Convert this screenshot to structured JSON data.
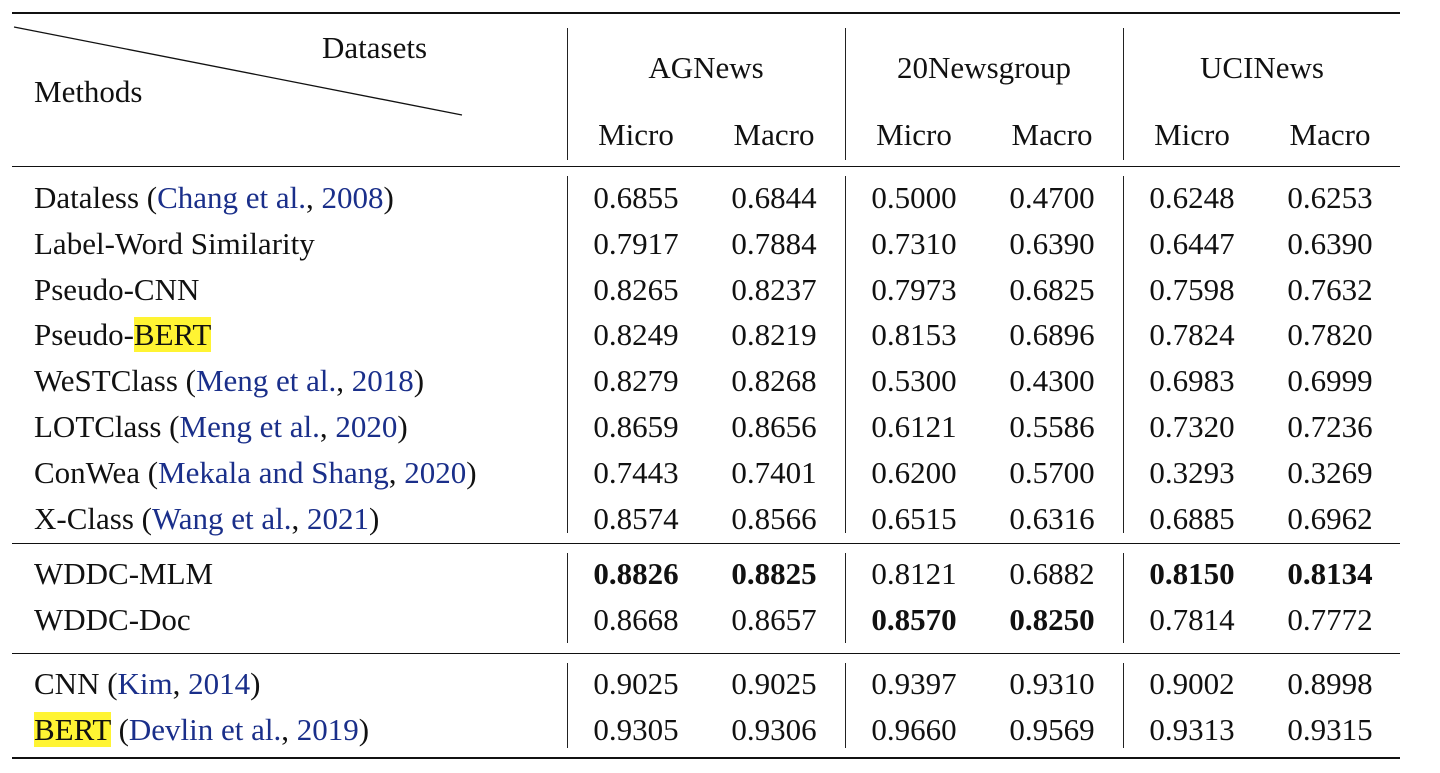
{
  "header": {
    "corner_top": "Datasets",
    "corner_bottom": "Methods",
    "datasets": [
      "AGNews",
      "20Newsgroup",
      "UCINews"
    ],
    "metrics": [
      "Micro",
      "Macro",
      "Micro",
      "Macro",
      "Micro",
      "Macro"
    ]
  },
  "groups": [
    {
      "rows": [
        {
          "parts": [
            {
              "t": "Dataless ("
            },
            {
              "t": "Chang et al.",
              "c": 1
            },
            {
              "t": ", "
            },
            {
              "t": "2008",
              "c": 1
            },
            {
              "t": ")"
            }
          ],
          "values": [
            "0.6855",
            "0.6844",
            "0.5000",
            "0.4700",
            "0.6248",
            "0.6253"
          ],
          "bold": []
        },
        {
          "parts": [
            {
              "t": "Label-Word Similarity"
            }
          ],
          "values": [
            "0.7917",
            "0.7884",
            "0.7310",
            "0.6390",
            "0.6447",
            "0.6390"
          ],
          "bold": []
        },
        {
          "parts": [
            {
              "t": "Pseudo-CNN"
            }
          ],
          "values": [
            "0.8265",
            "0.8237",
            "0.7973",
            "0.6825",
            "0.7598",
            "0.7632"
          ],
          "bold": []
        },
        {
          "parts": [
            {
              "t": "Pseudo-"
            },
            {
              "t": "BERT",
              "h": 1
            }
          ],
          "values": [
            "0.8249",
            "0.8219",
            "0.8153",
            "0.6896",
            "0.7824",
            "0.7820"
          ],
          "bold": []
        },
        {
          "parts": [
            {
              "t": "WeSTClass ("
            },
            {
              "t": "Meng et al.",
              "c": 1
            },
            {
              "t": ", "
            },
            {
              "t": "2018",
              "c": 1
            },
            {
              "t": ")"
            }
          ],
          "values": [
            "0.8279",
            "0.8268",
            "0.5300",
            "0.4300",
            "0.6983",
            "0.6999"
          ],
          "bold": []
        },
        {
          "parts": [
            {
              "t": "LOTClass ("
            },
            {
              "t": "Meng et al.",
              "c": 1
            },
            {
              "t": ", "
            },
            {
              "t": "2020",
              "c": 1
            },
            {
              "t": ")"
            }
          ],
          "values": [
            "0.8659",
            "0.8656",
            "0.6121",
            "0.5586",
            "0.7320",
            "0.7236"
          ],
          "bold": []
        },
        {
          "parts": [
            {
              "t": "ConWea ("
            },
            {
              "t": "Mekala and Shang",
              "c": 1
            },
            {
              "t": ", "
            },
            {
              "t": "2020",
              "c": 1
            },
            {
              "t": ")"
            }
          ],
          "values": [
            "0.7443",
            "0.7401",
            "0.6200",
            "0.5700",
            "0.3293",
            "0.3269"
          ],
          "bold": []
        },
        {
          "parts": [
            {
              "t": "X-Class ("
            },
            {
              "t": "Wang et al.",
              "c": 1
            },
            {
              "t": ", "
            },
            {
              "t": "2021",
              "c": 1
            },
            {
              "t": ")"
            }
          ],
          "values": [
            "0.8574",
            "0.8566",
            "0.6515",
            "0.6316",
            "0.6885",
            "0.6962"
          ],
          "bold": []
        }
      ]
    },
    {
      "rows": [
        {
          "parts": [
            {
              "t": "WDDC-MLM"
            }
          ],
          "values": [
            "0.8826",
            "0.8825",
            "0.8121",
            "0.6882",
            "0.8150",
            "0.8134"
          ],
          "bold": [
            0,
            1,
            4,
            5
          ]
        },
        {
          "parts": [
            {
              "t": "WDDC-Doc"
            }
          ],
          "values": [
            "0.8668",
            "0.8657",
            "0.8570",
            "0.8250",
            "0.7814",
            "0.7772"
          ],
          "bold": [
            2,
            3
          ]
        }
      ]
    },
    {
      "rows": [
        {
          "parts": [
            {
              "t": "CNN ("
            },
            {
              "t": "Kim",
              "c": 1
            },
            {
              "t": ", "
            },
            {
              "t": "2014",
              "c": 1
            },
            {
              "t": ")"
            }
          ],
          "values": [
            "0.9025",
            "0.9025",
            "0.9397",
            "0.9310",
            "0.9002",
            "0.8998"
          ],
          "bold": []
        },
        {
          "parts": [
            {
              "t": "BERT",
              "h": 1
            },
            {
              "t": " ("
            },
            {
              "t": "Devlin et al.",
              "c": 1
            },
            {
              "t": ", "
            },
            {
              "t": "2019",
              "c": 1
            },
            {
              "t": ")"
            }
          ],
          "values": [
            "0.9305",
            "0.9306",
            "0.9660",
            "0.9569",
            "0.9313",
            "0.9315"
          ],
          "bold": []
        }
      ]
    }
  ],
  "colors": {
    "citation": "#1a2f8a",
    "highlight": "#fff433"
  }
}
